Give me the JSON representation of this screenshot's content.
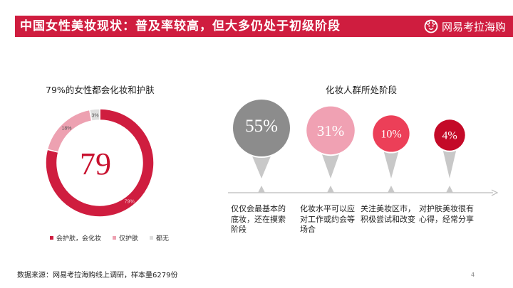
{
  "header": {
    "title": "中国女性美妆现状：普及率较高，但大多仍处于初级阶段",
    "brand": "网易考拉海购"
  },
  "colors": {
    "accent": "#cf1d3f",
    "pink": "#eda1b1",
    "light_gray": "#dedede",
    "dark_gray": "#8c8c8c",
    "light_pink": "#f0a1b3",
    "coral": "#ec3f58",
    "deep_red": "#c40a28",
    "axis": "#bbbbbb"
  },
  "chart_data": [
    {
      "type": "pie",
      "title": "79%的女性都会化妆和护肤",
      "center_label": "79",
      "slices": [
        {
          "label": "会护肤，会化妆",
          "value": 79,
          "value_label": "79%",
          "color": "#cf1d3f"
        },
        {
          "label": "仅护肤",
          "value": 18,
          "value_label": "18%",
          "color": "#eda1b1"
        },
        {
          "label": "都无",
          "value": 3,
          "value_label": "3%",
          "color": "#dedede"
        }
      ],
      "legend_position": "bottom"
    },
    {
      "type": "bubble-timeline",
      "title": "化妆人群所处阶段",
      "stages": [
        {
          "value": 55,
          "label": "55%",
          "description": "仅仅会最基本的底妆，还在摸索阶段",
          "color": "#8c8c8c"
        },
        {
          "value": 31,
          "label": "31%",
          "description": "化妆水平可以应对工作或约会等场合",
          "color": "#f0a1b3"
        },
        {
          "value": 10,
          "label": "10%",
          "description": "关注美妆区市，积极尝试和改变",
          "color": "#ec3f58"
        },
        {
          "value": 4,
          "label": "4%",
          "description": "对护肤美妆很有心得，经常分享",
          "color": "#c40a28"
        }
      ]
    }
  ],
  "footer": {
    "source": "数据来源：网易考拉海购线上调研，样本量6279份",
    "page_number": "4"
  }
}
